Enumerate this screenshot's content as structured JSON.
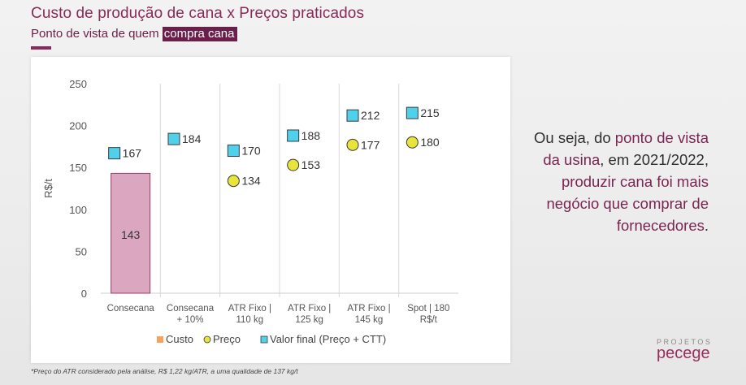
{
  "slide": {
    "title": "Custo de produção de cana x Preços praticados",
    "subtitle_prefix": "Ponto de vista de quem ",
    "subtitle_highlight": "compra cana",
    "note": {
      "p1": "Ou seja, do ",
      "h1": "ponto de vista da usina",
      "p2": ", em 2021/2022, ",
      "h2": "produzir cana foi mais negócio que comprar de fornecedores",
      "p3": "."
    },
    "footnote": "*Preço do ATR considerado pela análise, R$ 1,22 kg/ATR, a uma qualidade de 137 kg/t",
    "brand_top": "PROJETOS",
    "brand_main": "pecege"
  },
  "chart_data": {
    "type": "bar",
    "categories": [
      [
        "Consecana"
      ],
      [
        "Consecana",
        "+ 10%"
      ],
      [
        "ATR Fixo |",
        "110 kg"
      ],
      [
        "ATR Fixo |",
        "125 kg"
      ],
      [
        "ATR Fixo |",
        "145 kg"
      ],
      [
        "Spot | 180",
        "R$/t"
      ]
    ],
    "ylabel": "R$/t",
    "ylim": [
      0,
      250
    ],
    "yticks": [
      0,
      50,
      100,
      150,
      200,
      250
    ],
    "series": [
      {
        "name": "Custo",
        "kind": "bar",
        "color": "#dba7c0",
        "values": [
          143,
          null,
          null,
          null,
          null,
          null
        ]
      },
      {
        "name": "Preço",
        "kind": "circle",
        "color": "#e8e43a",
        "values": [
          null,
          null,
          134,
          153,
          177,
          180
        ]
      },
      {
        "name": "Valor final (Preço + CTT)",
        "kind": "square",
        "color": "#4fd1ec",
        "values": [
          167,
          184,
          170,
          188,
          212,
          215
        ]
      }
    ],
    "legend": {
      "placement": "bottom",
      "entries": [
        {
          "name": "Custo",
          "color": "#f4a460"
        },
        {
          "name": "Preço",
          "color": "#e8e43a"
        },
        {
          "name": "Valor final (Preço + CTT)",
          "color": "#4fd1ec"
        }
      ]
    },
    "grid": false
  }
}
